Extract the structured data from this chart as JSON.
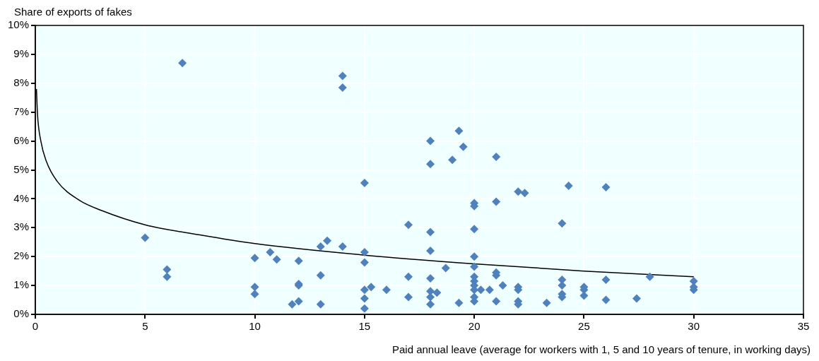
{
  "chart_data": {
    "type": "scatter",
    "ylabel": "Share of exports of fakes",
    "xlabel": "Paid annual leave (average for workers with 1, 5 and 10 years of tenure, in working days)",
    "xlim": [
      0,
      35
    ],
    "xticks": [
      0,
      5,
      10,
      15,
      20,
      25,
      30,
      35
    ],
    "ylim": [
      0,
      10
    ],
    "yticks": [
      {
        "value": 0,
        "label": "0%"
      },
      {
        "value": 1,
        "label": "1%"
      },
      {
        "value": 2,
        "label": "2%"
      },
      {
        "value": 3,
        "label": "3%"
      },
      {
        "value": 4,
        "label": "4%"
      },
      {
        "value": 5,
        "label": "5%"
      },
      {
        "value": 6,
        "label": "6%"
      },
      {
        "value": 7,
        "label": "7%"
      },
      {
        "value": 8,
        "label": "8%"
      },
      {
        "value": 9,
        "label": "9%"
      },
      {
        "value": 10,
        "label": "10%"
      }
    ],
    "grid": true,
    "legend": false,
    "marker": "diamond",
    "series": [
      {
        "color": "#4f81bd",
        "x": [
          5,
          6,
          6,
          6.7,
          10,
          10,
          10,
          10.7,
          11,
          11.7,
          12,
          12,
          12,
          12,
          13,
          13,
          13,
          13.3,
          14,
          14,
          14,
          15,
          15,
          15,
          15,
          15,
          15,
          15.3,
          16,
          17,
          17,
          17,
          18,
          18,
          18,
          18,
          18,
          18,
          18,
          18,
          18.3,
          18.7,
          19,
          19.3,
          19.5,
          19.3,
          20,
          20,
          20,
          20,
          20,
          20,
          20,
          20,
          20,
          20,
          20,
          20.3,
          20.7,
          21,
          21,
          21,
          21,
          21,
          21.3,
          22,
          22,
          22,
          22,
          22,
          22.3,
          23.3,
          24,
          24,
          24,
          24,
          24,
          24.3,
          25,
          25,
          25,
          26,
          26,
          26,
          27.4,
          28,
          30,
          30,
          30
        ],
        "values": [
          2.65,
          1.55,
          1.3,
          8.7,
          1.95,
          0.95,
          0.7,
          2.15,
          1.9,
          0.35,
          1.85,
          1.05,
          1.0,
          0.45,
          2.35,
          1.35,
          0.35,
          2.55,
          8.25,
          7.85,
          2.35,
          4.55,
          2.15,
          1.8,
          0.85,
          0.55,
          0.2,
          0.95,
          0.85,
          3.1,
          1.3,
          0.6,
          6.0,
          5.2,
          2.85,
          2.2,
          1.25,
          0.8,
          0.6,
          0.35,
          0.75,
          1.6,
          5.35,
          6.35,
          5.8,
          0.4,
          3.85,
          3.75,
          2.95,
          2.0,
          1.65,
          1.3,
          1.15,
          1.0,
          0.85,
          0.6,
          0.45,
          0.85,
          0.85,
          5.45,
          3.9,
          1.45,
          1.35,
          0.45,
          1.0,
          4.25,
          0.95,
          0.85,
          0.45,
          0.35,
          4.2,
          0.4,
          3.15,
          1.2,
          1.0,
          0.7,
          0.6,
          4.45,
          0.95,
          0.85,
          0.65,
          4.4,
          1.2,
          0.5,
          0.55,
          1.3,
          1.15,
          0.95,
          0.85
        ]
      },
      {
        "type": "line",
        "color": "#000000",
        "marker": "none",
        "line_style": "solid",
        "x": [
          0.05,
          0.1,
          0.25,
          0.5,
          1,
          2,
          3,
          5,
          7.5,
          10,
          15,
          20,
          25,
          30
        ],
        "values": [
          7.8,
          6.9,
          6.0,
          5.3,
          4.6,
          3.95,
          3.6,
          3.1,
          2.75,
          2.45,
          2.05,
          1.75,
          1.5,
          1.3
        ]
      }
    ]
  }
}
